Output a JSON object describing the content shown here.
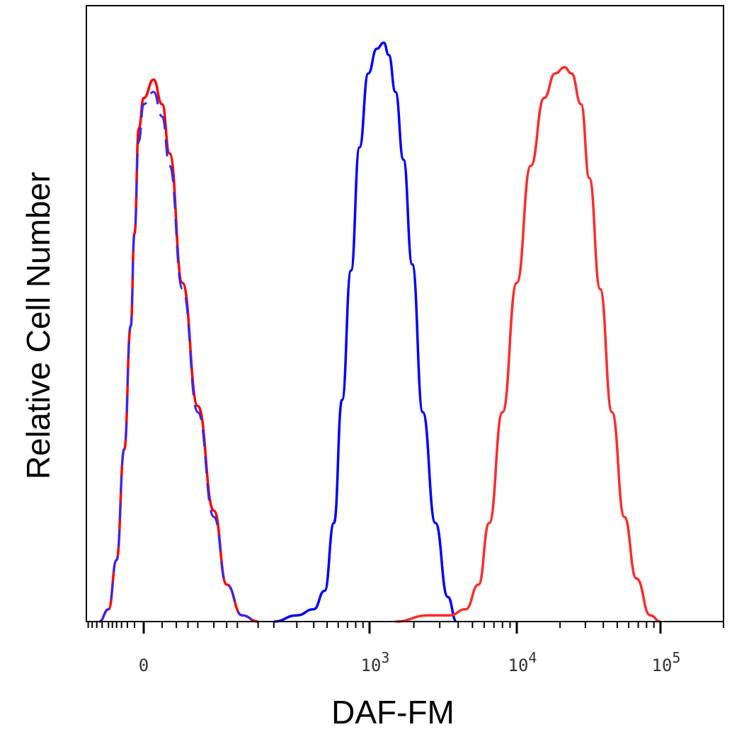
{
  "chart_data": {
    "type": "line",
    "title": "",
    "xlabel": "DAF-FM",
    "ylabel": "Relative Cell Number",
    "x_scale": "logicle",
    "x_range": [
      -150,
      200000
    ],
    "y_range": [
      0,
      100
    ],
    "grid": false,
    "legend": "none",
    "x_ticks": [
      {
        "label": "0",
        "base": "0",
        "exp": "",
        "value": 0
      },
      {
        "label": "10^3",
        "base": "10",
        "exp": "3",
        "value": 1000
      },
      {
        "label": "10^4",
        "base": "10",
        "exp": "4",
        "value": 10000
      },
      {
        "label": "10^5",
        "base": "10",
        "exp": "5",
        "value": 100000
      }
    ],
    "series": [
      {
        "color": "#ff0000",
        "dash": "solid",
        "x": [
          -90,
          -60,
          -40,
          -25,
          -15,
          -10,
          -5,
          0,
          5,
          10,
          15,
          25,
          40,
          60,
          80,
          110,
          150
        ],
        "y": [
          0,
          2,
          10,
          28,
          48,
          63,
          80,
          85,
          88,
          84,
          76,
          55,
          35,
          18,
          6,
          1,
          0
        ]
      },
      {
        "color": "#2a2aff",
        "dash": "dashed",
        "x": [
          -90,
          -60,
          -40,
          -25,
          -15,
          -10,
          -5,
          0,
          5,
          10,
          15,
          25,
          40,
          60,
          80,
          110,
          150
        ],
        "y": [
          0,
          2,
          10,
          28,
          48,
          63,
          78,
          84,
          86,
          82,
          74,
          54,
          34,
          17,
          6,
          1,
          0
        ]
      },
      {
        "color": "#0000ff",
        "dash": "solid",
        "x": [
          200,
          300,
          400,
          480,
          560,
          640,
          740,
          850,
          980,
          1120,
          1250,
          1350,
          1500,
          1700,
          1950,
          2300,
          2800,
          3400,
          3900
        ],
        "y": [
          0,
          1,
          2,
          5,
          16,
          36,
          57,
          77,
          89,
          93,
          94,
          92,
          86,
          75,
          58,
          34,
          16,
          4,
          0
        ]
      },
      {
        "color": "#ff2a2a",
        "dash": "solid",
        "x": [
          1500,
          2500,
          3500,
          4500,
          5500,
          6500,
          8000,
          10000,
          12500,
          15500,
          18500,
          21500,
          24000,
          28000,
          32000,
          38000,
          46000,
          56000,
          68000,
          85000,
          100000
        ],
        "y": [
          0,
          1,
          1,
          2,
          6,
          16,
          34,
          55,
          74,
          85,
          89,
          90,
          89,
          84,
          72,
          54,
          34,
          17,
          7,
          1,
          0
        ]
      }
    ]
  }
}
